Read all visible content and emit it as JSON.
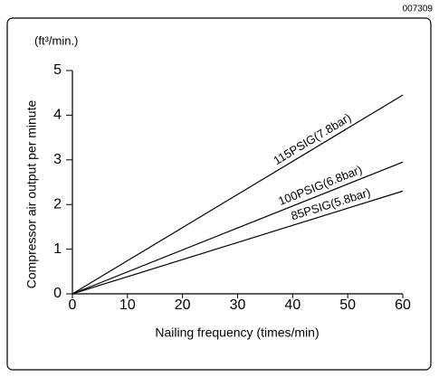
{
  "chart_data": {
    "type": "line",
    "figure_code": "007309",
    "y_unit": "(ft³/min.)",
    "x_label": "Nailing frequency (times/min)",
    "y_label": "Compressor air output per minute",
    "x": [
      0,
      60
    ],
    "series": [
      {
        "name": "115PSIG(7.8bar)",
        "color": "#000000",
        "values": [
          0,
          4.45
        ]
      },
      {
        "name": "100PSIG(6.8bar)",
        "color": "#000000",
        "values": [
          0,
          2.95
        ]
      },
      {
        "name": "85PSIG(5.8bar)",
        "color": "#000000",
        "values": [
          0,
          2.3
        ]
      }
    ],
    "xlim": [
      0,
      60
    ],
    "xticks": [
      0,
      10,
      20,
      30,
      40,
      50,
      60
    ],
    "ylim": [
      0,
      5
    ],
    "yticks": [
      0,
      1,
      2,
      3,
      4,
      5
    ],
    "grid": false
  }
}
